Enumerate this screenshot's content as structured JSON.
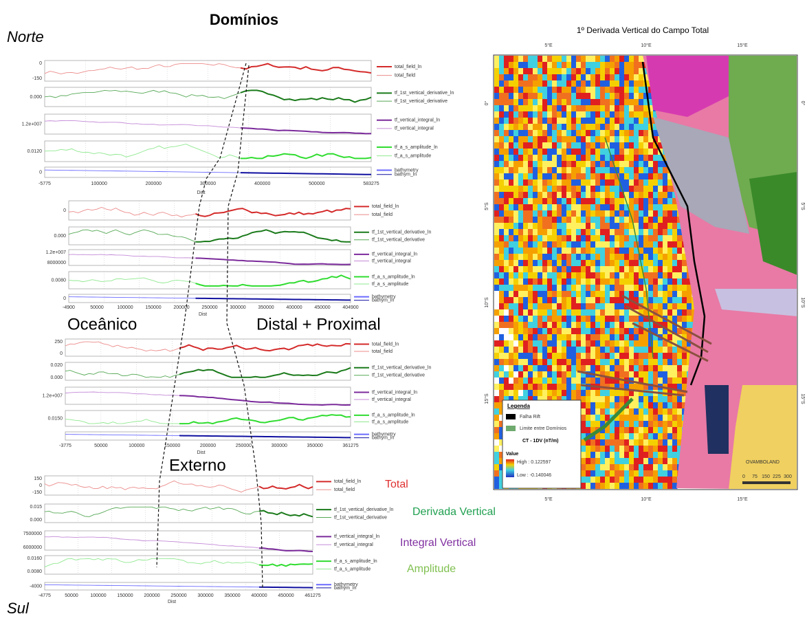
{
  "heading": "Domínios",
  "labels": {
    "north": "Norte",
    "south": "Sul",
    "oceanic": "Oceânico",
    "distal": "Distal + Proximal",
    "external": "Externo"
  },
  "annotations": [
    "Total",
    "Derivada Vertical",
    "Integral Vertical",
    "Amplitude"
  ],
  "profiles": [
    {
      "xlabel": "Dist",
      "xticks": [
        "-5775",
        "100000",
        "200000",
        "300000",
        "400000",
        "500000",
        "583275"
      ],
      "panels": [
        {
          "yticks": [
            "0",
            "-150"
          ],
          "legend": [
            "total_field_ln",
            "total_field"
          ]
        },
        {
          "yticks": [
            "0.000"
          ],
          "legend": [
            "tf_1st_vertical_derivative_ln",
            "tf_1st_vertical_derivative"
          ]
        },
        {
          "yticks": [
            "1.2e+007"
          ],
          "legend": [
            "tf_vertical_integral_ln",
            "tf_vertical_integral"
          ]
        },
        {
          "yticks": [
            "0.0120"
          ],
          "legend": [
            "tf_a_s_amplitude_ln",
            "tf_a_s_amplitude"
          ]
        },
        {
          "yticks": [
            "0"
          ],
          "legend": [
            "bathymetry",
            "bathym_ln"
          ]
        }
      ]
    },
    {
      "xlabel": "Dist",
      "xticks": [
        "-4900",
        "50000",
        "100000",
        "150000",
        "200000",
        "250000",
        "300000",
        "350000",
        "400000",
        "450000",
        "404900"
      ],
      "panels": [
        {
          "yticks": [
            "0"
          ],
          "legend": [
            "total_field_ln",
            "total_field"
          ]
        },
        {
          "yticks": [
            "0.000"
          ],
          "legend": [
            "tf_1st_vertical_derivative_ln",
            "tf_1st_vertical_derivative"
          ]
        },
        {
          "yticks": [
            "1.2e+007",
            "8000000"
          ],
          "legend": [
            "tf_vertical_integral_ln",
            "tf_vertical_integral"
          ]
        },
        {
          "yticks": [
            "0.0080"
          ],
          "legend": [
            "tf_a_s_amplitude_ln",
            "tf_a_s_amplitude"
          ]
        },
        {
          "yticks": [
            "0"
          ],
          "legend": [
            "bathymetry",
            "bathym_ln"
          ]
        }
      ]
    },
    {
      "xlabel": "Dist",
      "xticks": [
        "-3775",
        "50000",
        "100000",
        "150000",
        "200000",
        "250000",
        "300000",
        "350000",
        "361275"
      ],
      "panels": [
        {
          "yticks": [
            "250",
            "0"
          ],
          "legend": [
            "total_field_ln",
            "total_field"
          ]
        },
        {
          "yticks": [
            "0.020",
            "0.000"
          ],
          "legend": [
            "tf_1st_vertical_derivative_ln",
            "tf_1st_vertical_derivative"
          ]
        },
        {
          "yticks": [
            "1.2e+007"
          ],
          "legend": [
            "tf_vertical_integral_ln",
            "tf_vertical_integral"
          ]
        },
        {
          "yticks": [
            "0.0150"
          ],
          "legend": [
            "tf_a_s_amplitude_ln",
            "tf_a_s_amplitude"
          ]
        },
        {
          "yticks": [],
          "legend": [
            "bathymetry",
            "bathym_ln"
          ]
        }
      ]
    },
    {
      "xlabel": "Dist",
      "xticks": [
        "-4775",
        "50000",
        "100000",
        "150000",
        "200000",
        "250000",
        "300000",
        "350000",
        "400000",
        "450000",
        "461275"
      ],
      "panels": [
        {
          "yticks": [
            "150",
            "0",
            "-150"
          ],
          "legend": [
            "total_field_ln",
            "total_field"
          ]
        },
        {
          "yticks": [
            "0.015",
            "0.000"
          ],
          "legend": [
            "tf_1st_vertical_derivative_ln",
            "tf_1st_vertical_derivative"
          ]
        },
        {
          "yticks": [
            "7500000",
            "6000000"
          ],
          "legend": [
            "tf_vertical_integral_ln",
            "tf_vertical_integral"
          ]
        },
        {
          "yticks": [
            "0.0160",
            "0.0080"
          ],
          "legend": [
            "tf_a_s_amplitude_ln",
            "tf_a_s_amplitude"
          ]
        },
        {
          "yticks": [
            "-4000"
          ],
          "legend": [
            "bathymetry",
            "bathym_ln"
          ]
        }
      ]
    }
  ],
  "map": {
    "title": "1º Derivada Vertical do Campo Total",
    "top_ticks": [
      "5°E",
      "10°E",
      "15°E"
    ],
    "bottom_ticks": [
      "5°E",
      "10°E",
      "15°E"
    ],
    "left_ticks": [
      "0°",
      "5°S",
      "10°S",
      "15°S"
    ],
    "right_ticks": [
      "0°",
      "5°S",
      "10°S",
      "15°S"
    ],
    "legend": {
      "title": "Legenda",
      "items": [
        "Falha Rift",
        "Limite entre Domínios"
      ],
      "subtitle": "CT - 1DV (nT/m)",
      "value": "Value",
      "high": "High : 0.122597",
      "low": "Low : -0.140046"
    },
    "scale": [
      "0",
      "75",
      "150",
      "225",
      "300"
    ],
    "place": "OVAMBOLAND"
  }
}
